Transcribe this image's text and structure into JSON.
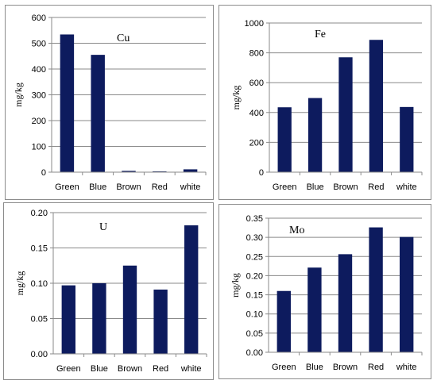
{
  "chart_data": [
    {
      "type": "bar",
      "title": "Cu",
      "ylabel": "mg/kg",
      "categories": [
        "Green",
        "Blue",
        "Brown",
        "Red",
        "white"
      ],
      "values": [
        534,
        455,
        5,
        3,
        11
      ],
      "ylim": [
        0,
        600
      ],
      "yticks": [
        "0",
        "100",
        "200",
        "300",
        "400",
        "500",
        "600"
      ],
      "ytick_values": [
        0,
        100,
        200,
        300,
        400,
        500,
        600
      ],
      "grid": true,
      "bar_color": "#0d1b5e"
    },
    {
      "type": "bar",
      "title": "Fe",
      "ylabel": "mg/kg",
      "categories": [
        "Green",
        "Blue",
        "Brown",
        "Red",
        "white"
      ],
      "values": [
        435,
        497,
        770,
        887,
        437
      ],
      "ylim": [
        0,
        1000
      ],
      "yticks": [
        "0",
        "200",
        "400",
        "600",
        "800",
        "1000"
      ],
      "ytick_values": [
        0,
        200,
        400,
        600,
        800,
        1000
      ],
      "grid": true,
      "bar_color": "#0d1b5e"
    },
    {
      "type": "bar",
      "title": "U",
      "ylabel": "mg/kg",
      "categories": [
        "Green",
        "Blue",
        "Brown",
        "Red",
        "white"
      ],
      "values": [
        0.097,
        0.1,
        0.125,
        0.091,
        0.182
      ],
      "ylim": [
        0,
        0.2
      ],
      "yticks": [
        "0.00",
        "0.05",
        "0.10",
        "0.15",
        "0.20"
      ],
      "ytick_values": [
        0,
        0.05,
        0.1,
        0.15,
        0.2
      ],
      "grid": true,
      "bar_color": "#0d1b5e"
    },
    {
      "type": "bar",
      "title": "Mo",
      "ylabel": "mg/kg",
      "categories": [
        "Green",
        "Blue",
        "Brown",
        "Red",
        "white"
      ],
      "values": [
        0.16,
        0.221,
        0.256,
        0.326,
        0.301
      ],
      "ylim": [
        0,
        0.35
      ],
      "yticks": [
        "0.00",
        "0.05",
        "0.10",
        "0.15",
        "0.20",
        "0.25",
        "0.30",
        "0.35"
      ],
      "ytick_values": [
        0,
        0.05,
        0.1,
        0.15,
        0.2,
        0.25,
        0.3,
        0.35
      ],
      "grid": true,
      "bar_color": "#0d1b5e"
    }
  ]
}
